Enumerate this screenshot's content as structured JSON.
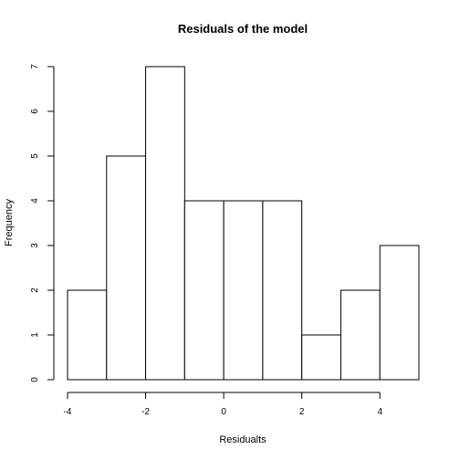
{
  "chart_data": {
    "type": "bar",
    "title": "Residuals of the model",
    "xlabel": "Residualts",
    "ylabel": "Frequency",
    "bins": [
      {
        "from": -4,
        "to": -3,
        "count": 2
      },
      {
        "from": -3,
        "to": -2,
        "count": 5
      },
      {
        "from": -2,
        "to": -1,
        "count": 7
      },
      {
        "from": -1,
        "to": 0,
        "count": 4
      },
      {
        "from": 0,
        "to": 1,
        "count": 4
      },
      {
        "from": 1,
        "to": 2,
        "count": 4
      },
      {
        "from": 2,
        "to": 3,
        "count": 1
      },
      {
        "from": 3,
        "to": 4,
        "count": 2
      },
      {
        "from": 4,
        "to": 5,
        "count": 3
      }
    ],
    "xticks": [
      -4,
      -2,
      0,
      2,
      4
    ],
    "yticks": [
      0,
      1,
      2,
      3,
      4,
      5,
      6,
      7
    ],
    "xlim": [
      -4,
      5
    ],
    "ylim": [
      0,
      7
    ],
    "grid": false,
    "legend": "none"
  }
}
